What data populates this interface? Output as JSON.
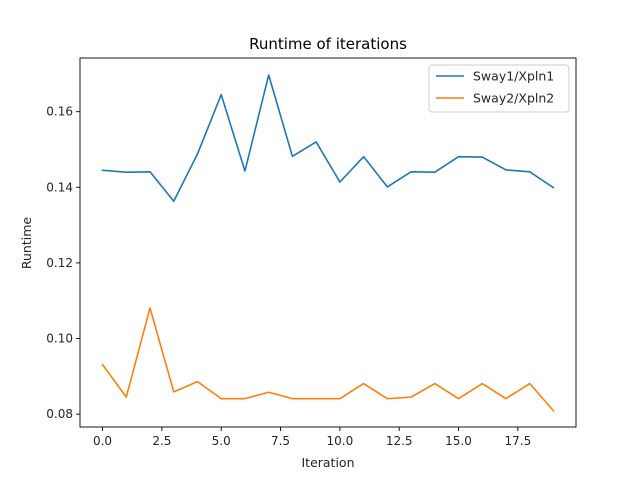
{
  "chart_data": {
    "type": "line",
    "title": "Runtime of iterations",
    "xlabel": "Iteration",
    "ylabel": "Runtime",
    "xlim": [
      -0.95,
      19.95
    ],
    "ylim": [
      0.0766,
      0.1742
    ],
    "xticks": [
      0.0,
      2.5,
      5.0,
      7.5,
      10.0,
      12.5,
      15.0,
      17.5
    ],
    "xtick_labels": [
      "0.0",
      "2.5",
      "5.0",
      "7.5",
      "10.0",
      "12.5",
      "15.0",
      "17.5"
    ],
    "yticks": [
      0.08,
      0.1,
      0.12,
      0.14,
      0.16
    ],
    "ytick_labels": [
      "0.08",
      "0.10",
      "0.12",
      "0.14",
      "0.16"
    ],
    "grid": false,
    "legend_position": "top-right",
    "x": [
      0,
      1,
      2,
      3,
      4,
      5,
      6,
      7,
      8,
      9,
      10,
      11,
      12,
      13,
      14,
      15,
      16,
      17,
      18,
      19
    ],
    "series": [
      {
        "name": "Sway1/Xpln1",
        "color": "#1f77b4",
        "values": [
          0.1445,
          0.144,
          0.1441,
          0.1363,
          0.1488,
          0.1645,
          0.1443,
          0.1697,
          0.1482,
          0.152,
          0.1414,
          0.1481,
          0.1401,
          0.1441,
          0.144,
          0.1481,
          0.148,
          0.1446,
          0.1441,
          0.1399
        ]
      },
      {
        "name": "Sway2/Xpln2",
        "color": "#ff7f0e",
        "values": [
          0.0931,
          0.0845,
          0.1081,
          0.0859,
          0.0886,
          0.0841,
          0.0841,
          0.0858,
          0.0841,
          0.0841,
          0.0841,
          0.0881,
          0.0841,
          0.0845,
          0.0881,
          0.0841,
          0.0881,
          0.0841,
          0.0881,
          0.0809
        ]
      }
    ]
  }
}
